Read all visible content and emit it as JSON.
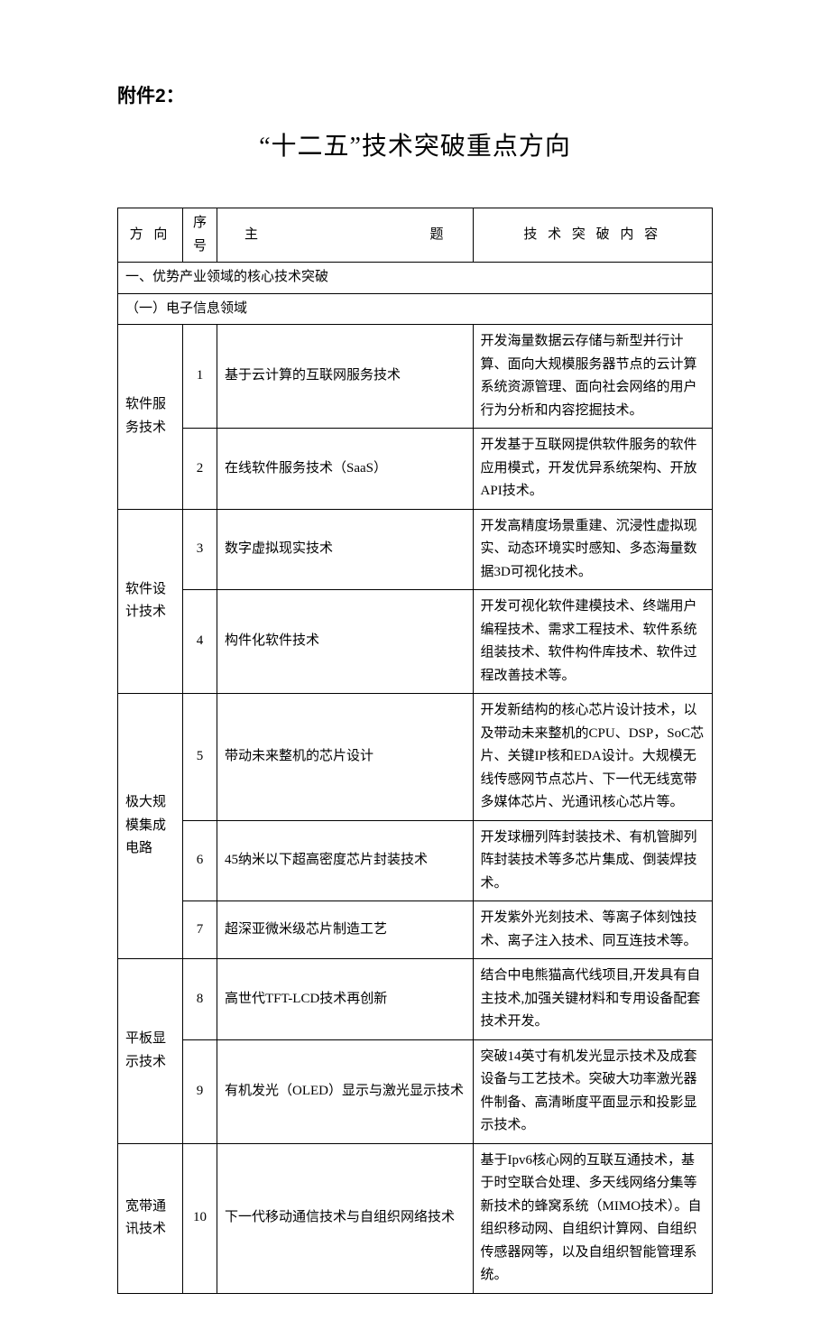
{
  "attachment_label": "附件2：",
  "main_title": "“十二五”技术突破重点方向",
  "headers": {
    "direction": "方 向",
    "num": "序号",
    "topic": "主",
    "topic2": "题",
    "content": "技 术 突 破 内 容"
  },
  "section1": "一、优势产业领域的核心技术突破",
  "section1_sub1": "（一）电子信息领域",
  "rows": [
    {
      "direction": "软件服务技术",
      "num": "1",
      "topic": "基于云计算的互联网服务技术",
      "content": "开发海量数据云存储与新型并行计算、面向大规模服务器节点的云计算系统资源管理、面向社会网络的用户行为分析和内容挖掘技术。"
    },
    {
      "num": "2",
      "topic": "在线软件服务技术（SaaS）",
      "content": "开发基于互联网提供软件服务的软件应用模式，开发优异系统架构、开放API技术。"
    },
    {
      "direction": "软件设计技术",
      "num": "3",
      "topic": "数字虚拟现实技术",
      "content": "开发高精度场景重建、沉浸性虚拟现实、动态环境实时感知、多态海量数据3D可视化技术。"
    },
    {
      "num": "4",
      "topic": "构件化软件技术",
      "content": "开发可视化软件建模技术、终端用户编程技术、需求工程技术、软件系统组装技术、软件构件库技术、软件过程改善技术等。"
    },
    {
      "direction": "极大规模集成电路",
      "num": "5",
      "topic": "带动未来整机的芯片设计",
      "content": "开发新结构的核心芯片设计技术，以及带动未来整机的CPU、DSP，SoC芯片、关键IP核和EDA设计。大规模无线传感网节点芯片、下一代无线宽带多媒体芯片、光通讯核心芯片等。"
    },
    {
      "num": "6",
      "topic": "45纳米以下超高密度芯片封装技术",
      "content": "开发球栅列阵封装技术、有机管脚列阵封装技术等多芯片集成、倒装焊技术。"
    },
    {
      "num": "7",
      "topic": "超深亚微米级芯片制造工艺",
      "content": "开发紫外光刻技术、等离子体刻蚀技术、离子注入技术、同互连技术等。"
    },
    {
      "direction": "平板显示技术",
      "num": "8",
      "topic": "高世代TFT-LCD技术再创新",
      "content": "结合中电熊猫高代线项目,开发具有自主技术,加强关键材料和专用设备配套技术开发。"
    },
    {
      "num": "9",
      "topic": "有机发光（OLED）显示与激光显示技术",
      "content": "突破14英寸有机发光显示技术及成套设备与工艺技术。突破大功率激光器件制备、高清晰度平面显示和投影显示技术。"
    },
    {
      "direction": "宽带通讯技术",
      "num": "10",
      "topic": "下一代移动通信技术与自组织网络技术",
      "content": "基于Ipv6核心网的互联互通技术，基于时空联合处理、多天线网络分集等新技术的蜂窝系统（MIMO技术）。自组织移动网、自组织计算网、自组织传感器网等，以及自组织智能管理系统。"
    }
  ]
}
